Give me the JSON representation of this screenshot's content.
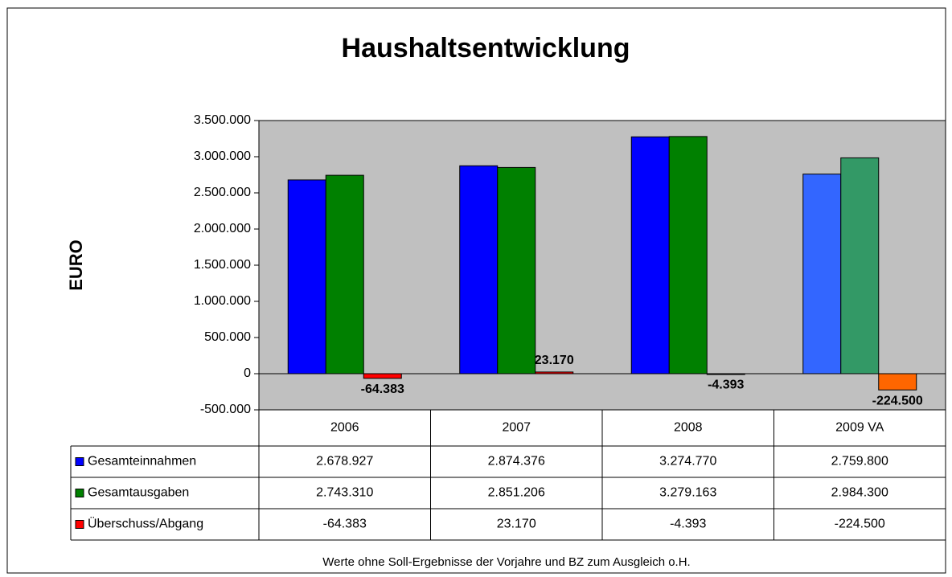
{
  "chart_data": {
    "type": "bar",
    "title": "Haushaltsentwicklung",
    "y_label": "EURO",
    "footnote": "Werte ohne Soll-Ergebnisse der Vorjahre und BZ zum Ausgleich o.H.",
    "categories": [
      "2006",
      "2007",
      "2008",
      "2009 VA"
    ],
    "series": [
      {
        "name": "Gesamteinnahmen",
        "colors": [
          "#0000ff",
          "#0000ff",
          "#0000ff",
          "#3366ff"
        ],
        "values": [
          2678927,
          2874376,
          3274770,
          2759800
        ],
        "value_labels": [
          "2.678.927",
          "2.874.376",
          "3.274.770",
          "2.759.800"
        ],
        "show_value_labels": false
      },
      {
        "name": "Gesamtausgaben",
        "colors": [
          "#008000",
          "#008000",
          "#008000",
          "#339966"
        ],
        "values": [
          2743310,
          2851206,
          3279163,
          2984300
        ],
        "value_labels": [
          "2.743.310",
          "2.851.206",
          "3.279.163",
          "2.984.300"
        ],
        "show_value_labels": false
      },
      {
        "name": "Überschuss/Abgang",
        "colors": [
          "#ff0000",
          "#ff0000",
          "#ff0000",
          "#ff6600"
        ],
        "values": [
          -64383,
          23170,
          -4393,
          -224500
        ],
        "value_labels": [
          "-64.383",
          "23.170",
          "-4.393",
          "-224.500"
        ],
        "show_value_labels": true,
        "value_label_color": "#000000",
        "negative_value_label_color": "#ff0000"
      }
    ],
    "ylim": [
      -500000,
      3500000
    ],
    "yticks": [
      {
        "value": -500000,
        "label": "-500.000"
      },
      0,
      {
        "value": 500000,
        "label": "500.000"
      },
      {
        "value": 1000000,
        "label": "1.000.000"
      },
      {
        "value": 1500000,
        "label": "1.500.000"
      },
      {
        "value": 2000000,
        "label": "2.000.000"
      },
      {
        "value": 2500000,
        "label": "2.500.000"
      },
      {
        "value": 3000000,
        "label": "3.000.000"
      },
      {
        "value": 3500000,
        "label": "3.500.000"
      }
    ],
    "grid": false,
    "plot_color": "#c0c0c0",
    "data_table": true
  }
}
